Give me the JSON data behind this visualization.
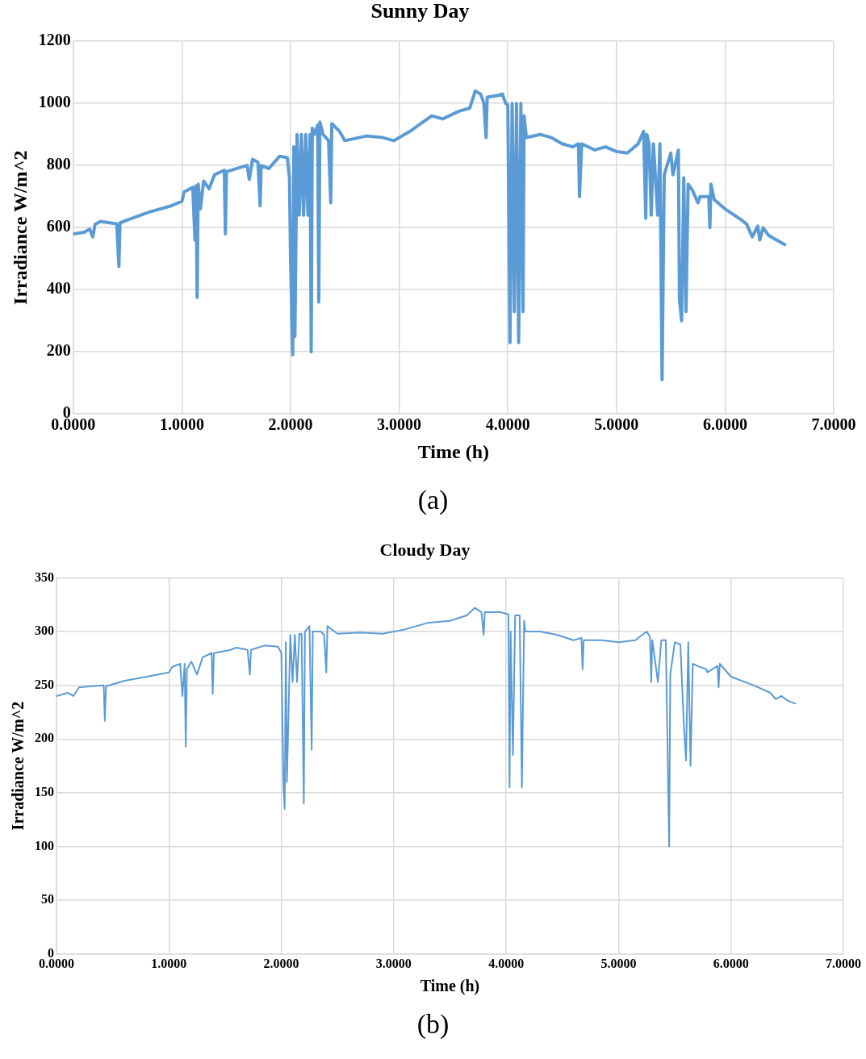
{
  "chart_data": [
    {
      "type": "line",
      "title": "Sunny Day",
      "xlabel": "Time (h)",
      "ylabel": "Irradiance W/m^2",
      "annotations": [
        "(a)"
      ],
      "xlim": [
        0,
        7
      ],
      "ylim": [
        0,
        1200
      ],
      "grid": true,
      "xticks": [
        {
          "value": 0,
          "label": "0.0000"
        },
        {
          "value": 1,
          "label": "1.0000"
        },
        {
          "value": 2,
          "label": "2.0000"
        },
        {
          "value": 3,
          "label": "3.0000"
        },
        {
          "value": 4,
          "label": "4.0000"
        },
        {
          "value": 5,
          "label": "5.0000"
        },
        {
          "value": 6,
          "label": "6.0000"
        },
        {
          "value": 7,
          "label": "7.0000"
        }
      ],
      "yticks": [
        0,
        200,
        400,
        600,
        800,
        1000,
        1200
      ],
      "x": [
        0,
        0.1,
        0.15,
        0.18,
        0.2,
        0.25,
        0.35,
        0.4,
        0.42,
        0.43,
        0.5,
        0.7,
        0.9,
        1,
        1.02,
        1.1,
        1.12,
        1.13,
        1.14,
        1.15,
        1.17,
        1.2,
        1.25,
        1.3,
        1.39,
        1.4,
        1.41,
        1.5,
        1.6,
        1.62,
        1.65,
        1.7,
        1.72,
        1.73,
        1.8,
        1.9,
        1.97,
        1.99,
        2,
        2.02,
        2.03,
        2.04,
        2.06,
        2.08,
        2.1,
        2.12,
        2.14,
        2.16,
        2.18,
        2.19,
        2.2,
        2.22,
        2.25,
        2.26,
        2.27,
        2.3,
        2.35,
        2.37,
        2.38,
        2.45,
        2.5,
        2.7,
        2.85,
        2.95,
        3.1,
        3.2,
        3.3,
        3.4,
        3.55,
        3.65,
        3.7,
        3.75,
        3.78,
        3.8,
        3.81,
        3.9,
        3.95,
        3.98,
        4,
        4.02,
        4.04,
        4.06,
        4.08,
        4.1,
        4.12,
        4.14,
        4.15,
        4.17,
        4.3,
        4.4,
        4.5,
        4.6,
        4.65,
        4.66,
        4.68,
        4.8,
        4.9,
        5,
        5.1,
        5.2,
        5.25,
        5.27,
        5.28,
        5.3,
        5.32,
        5.34,
        5.38,
        5.4,
        5.42,
        5.44,
        5.5,
        5.52,
        5.57,
        5.58,
        5.6,
        5.62,
        5.64,
        5.66,
        5.7,
        5.75,
        5.77,
        5.85,
        5.86,
        5.87,
        5.9,
        6,
        6.15,
        6.2,
        6.25,
        6.3,
        6.32,
        6.35,
        6.4,
        6.45,
        6.5,
        6.55
      ],
      "series": [
        {
          "color": "#5b9bd5",
          "values": [
            580,
            585,
            595,
            570,
            610,
            620,
            615,
            612,
            475,
            615,
            625,
            650,
            670,
            685,
            715,
            730,
            560,
            735,
            375,
            740,
            660,
            750,
            725,
            770,
            785,
            580,
            780,
            790,
            800,
            755,
            820,
            810,
            670,
            800,
            790,
            830,
            825,
            760,
            500,
            190,
            860,
            250,
            900,
            640,
            900,
            640,
            900,
            640,
            900,
            200,
            920,
            900,
            930,
            360,
            940,
            900,
            880,
            680,
            935,
            910,
            880,
            895,
            890,
            880,
            910,
            935,
            960,
            950,
            975,
            985,
            1040,
            1030,
            1000,
            890,
            1020,
            1025,
            1030,
            1000,
            995,
            230,
            1000,
            330,
            1000,
            230,
            1000,
            330,
            960,
            890,
            900,
            890,
            870,
            860,
            870,
            700,
            870,
            850,
            860,
            845,
            840,
            870,
            910,
            630,
            900,
            870,
            640,
            870,
            640,
            870,
            110,
            770,
            840,
            770,
            850,
            370,
            300,
            760,
            330,
            740,
            720,
            680,
            700,
            700,
            600,
            740,
            690,
            660,
            625,
            610,
            570,
            605,
            560,
            600,
            575,
            565,
            555,
            545
          ]
        }
      ]
    },
    {
      "type": "line",
      "title": "Cloudy Day",
      "xlabel": "Time (h)",
      "ylabel": "Irradiance W/m^2",
      "annotations": [
        "(b)"
      ],
      "xlim": [
        0,
        7
      ],
      "ylim": [
        0,
        350
      ],
      "grid": true,
      "xticks": [
        {
          "value": 0,
          "label": "0.0000"
        },
        {
          "value": 1,
          "label": "1.0000"
        },
        {
          "value": 2,
          "label": "2.0000"
        },
        {
          "value": 3,
          "label": "3.0000"
        },
        {
          "value": 4,
          "label": "4.0000"
        },
        {
          "value": 5,
          "label": "5.0000"
        },
        {
          "value": 6,
          "label": "6.0000"
        },
        {
          "value": 7,
          "label": "7.0000"
        }
      ],
      "yticks": [
        0,
        50,
        100,
        150,
        200,
        250,
        300,
        350
      ],
      "x": [
        0,
        0.1,
        0.15,
        0.2,
        0.3,
        0.42,
        0.43,
        0.44,
        0.6,
        0.8,
        1,
        1.03,
        1.1,
        1.12,
        1.14,
        1.15,
        1.16,
        1.2,
        1.25,
        1.3,
        1.38,
        1.39,
        1.4,
        1.55,
        1.6,
        1.7,
        1.72,
        1.73,
        1.85,
        1.97,
        2,
        2.02,
        2.03,
        2.04,
        2.05,
        2.08,
        2.1,
        2.12,
        2.14,
        2.16,
        2.18,
        2.2,
        2.21,
        2.25,
        2.27,
        2.28,
        2.35,
        2.38,
        2.4,
        2.41,
        2.5,
        2.7,
        2.9,
        3.1,
        3.3,
        3.5,
        3.65,
        3.72,
        3.78,
        3.8,
        3.81,
        3.95,
        4.02,
        4.03,
        4.04,
        4.06,
        4.08,
        4.12,
        4.14,
        4.16,
        4.17,
        4.3,
        4.45,
        4.6,
        4.67,
        4.68,
        4.69,
        4.85,
        5,
        5.15,
        5.25,
        5.28,
        5.29,
        5.3,
        5.35,
        5.38,
        5.42,
        5.45,
        5.46,
        5.5,
        5.55,
        5.58,
        5.6,
        5.62,
        5.64,
        5.66,
        5.7,
        5.78,
        5.79,
        5.88,
        5.89,
        5.9,
        6,
        6.2,
        6.35,
        6.4,
        6.45,
        6.5,
        6.57
      ],
      "series": [
        {
          "color": "#5b9bd5",
          "values": [
            240,
            243,
            240,
            248,
            249,
            250,
            217,
            249,
            254,
            258,
            262,
            267,
            270,
            240,
            270,
            193,
            265,
            272,
            260,
            276,
            280,
            242,
            280,
            283,
            285,
            283,
            260,
            283,
            287,
            286,
            280,
            155,
            135,
            290,
            160,
            297,
            253,
            297,
            253,
            298,
            298,
            140,
            300,
            305,
            190,
            300,
            300,
            297,
            262,
            305,
            298,
            299,
            298,
            302,
            308,
            310,
            315,
            322,
            318,
            297,
            318,
            318,
            316,
            155,
            300,
            185,
            315,
            315,
            155,
            310,
            300,
            300,
            297,
            292,
            294,
            265,
            292,
            292,
            290,
            292,
            300,
            295,
            253,
            292,
            253,
            292,
            292,
            100,
            260,
            290,
            288,
            215,
            180,
            290,
            175,
            270,
            268,
            265,
            262,
            268,
            248,
            270,
            258,
            250,
            243,
            237,
            240,
            236,
            233
          ]
        }
      ]
    }
  ]
}
